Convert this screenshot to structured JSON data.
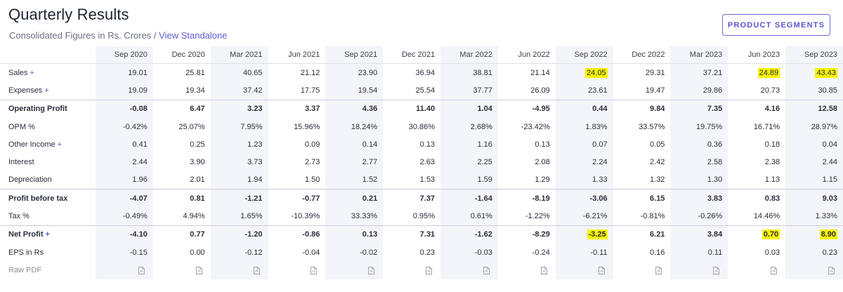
{
  "header": {
    "title": "Quarterly Results",
    "subtitle_text": "Consolidated Figures in Rs. Crores / ",
    "standalone_link": "View Standalone",
    "product_segments_label": "PRODUCT SEGMENTS"
  },
  "table": {
    "columns": [
      "Sep 2020",
      "Dec 2020",
      "Mar 2021",
      "Jun 2021",
      "Sep 2021",
      "Dec 2021",
      "Mar 2022",
      "Jun 2022",
      "Sep 2022",
      "Dec 2022",
      "Mar 2023",
      "Jun 2023",
      "Sep 2023"
    ],
    "rows": [
      {
        "label": "Sales",
        "expandable": true,
        "bold": false,
        "separator": false,
        "values": [
          "19.01",
          "25.81",
          "40.65",
          "21.12",
          "23.90",
          "36.94",
          "38.81",
          "21.14",
          "24.05",
          "29.31",
          "37.21",
          "24.89",
          "43.43"
        ],
        "highlight": [
          8,
          11,
          12
        ]
      },
      {
        "label": "Expenses",
        "expandable": true,
        "bold": false,
        "separator": false,
        "values": [
          "19.09",
          "19.34",
          "37.42",
          "17.75",
          "19.54",
          "25.54",
          "37.77",
          "26.09",
          "23.61",
          "19.47",
          "29.86",
          "20.73",
          "30.85"
        ],
        "highlight": []
      },
      {
        "label": "Operating Profit",
        "expandable": false,
        "bold": true,
        "separator": true,
        "values": [
          "-0.08",
          "6.47",
          "3.23",
          "3.37",
          "4.36",
          "11.40",
          "1.04",
          "-4.95",
          "0.44",
          "9.84",
          "7.35",
          "4.16",
          "12.58"
        ],
        "highlight": []
      },
      {
        "label": "OPM %",
        "expandable": false,
        "bold": false,
        "separator": false,
        "values": [
          "-0.42%",
          "25.07%",
          "7.95%",
          "15.96%",
          "18.24%",
          "30.86%",
          "2.68%",
          "-23.42%",
          "1.83%",
          "33.57%",
          "19.75%",
          "16.71%",
          "28.97%"
        ],
        "highlight": []
      },
      {
        "label": "Other Income",
        "expandable": true,
        "bold": false,
        "separator": false,
        "values": [
          "0.41",
          "0.25",
          "1.23",
          "0.09",
          "0.14",
          "0.13",
          "1.16",
          "0.13",
          "0.07",
          "0.05",
          "0.36",
          "0.18",
          "0.04"
        ],
        "highlight": []
      },
      {
        "label": "Interest",
        "expandable": false,
        "bold": false,
        "separator": false,
        "values": [
          "2.44",
          "3.90",
          "3.73",
          "2.73",
          "2.77",
          "2.63",
          "2.25",
          "2.08",
          "2.24",
          "2.42",
          "2.58",
          "2.38",
          "2.44"
        ],
        "highlight": []
      },
      {
        "label": "Depreciation",
        "expandable": false,
        "bold": false,
        "separator": false,
        "values": [
          "1.96",
          "2.01",
          "1.94",
          "1.50",
          "1.52",
          "1.53",
          "1.59",
          "1.29",
          "1.33",
          "1.32",
          "1.30",
          "1.13",
          "1.15"
        ],
        "highlight": []
      },
      {
        "label": "Profit before tax",
        "expandable": false,
        "bold": true,
        "separator": true,
        "values": [
          "-4.07",
          "0.81",
          "-1.21",
          "-0.77",
          "0.21",
          "7.37",
          "-1.64",
          "-8.19",
          "-3.06",
          "6.15",
          "3.83",
          "0.83",
          "9.03"
        ],
        "highlight": []
      },
      {
        "label": "Tax %",
        "expandable": false,
        "bold": false,
        "separator": false,
        "values": [
          "-0.49%",
          "4.94%",
          "1.65%",
          "-10.39%",
          "33.33%",
          "0.95%",
          "0.61%",
          "-1.22%",
          "-6.21%",
          "-0.81%",
          "-0.26%",
          "14.46%",
          "1.33%"
        ],
        "highlight": []
      },
      {
        "label": "Net Profit",
        "expandable": true,
        "bold": true,
        "separator": true,
        "values": [
          "-4.10",
          "0.77",
          "-1.20",
          "-0.86",
          "0.13",
          "7.31",
          "-1.62",
          "-8.29",
          "-3.25",
          "6.21",
          "3.84",
          "0.70",
          "8.90"
        ],
        "highlight": [
          8,
          11,
          12
        ]
      },
      {
        "label": "EPS in Rs",
        "expandable": false,
        "bold": false,
        "separator": false,
        "values": [
          "-0.15",
          "0.00",
          "-0.12",
          "-0.04",
          "-0.02",
          "0.23",
          "-0.03",
          "-0.24",
          "-0.11",
          "0.16",
          "0.11",
          "0.03",
          "0.23"
        ],
        "highlight": []
      }
    ],
    "raw_pdf_label": "Raw PDF",
    "plus_symbol": "+"
  },
  "colors": {
    "accent": "#5f5ad6",
    "highlight": "#f7f300",
    "alt_column": "#f4f5f9"
  }
}
